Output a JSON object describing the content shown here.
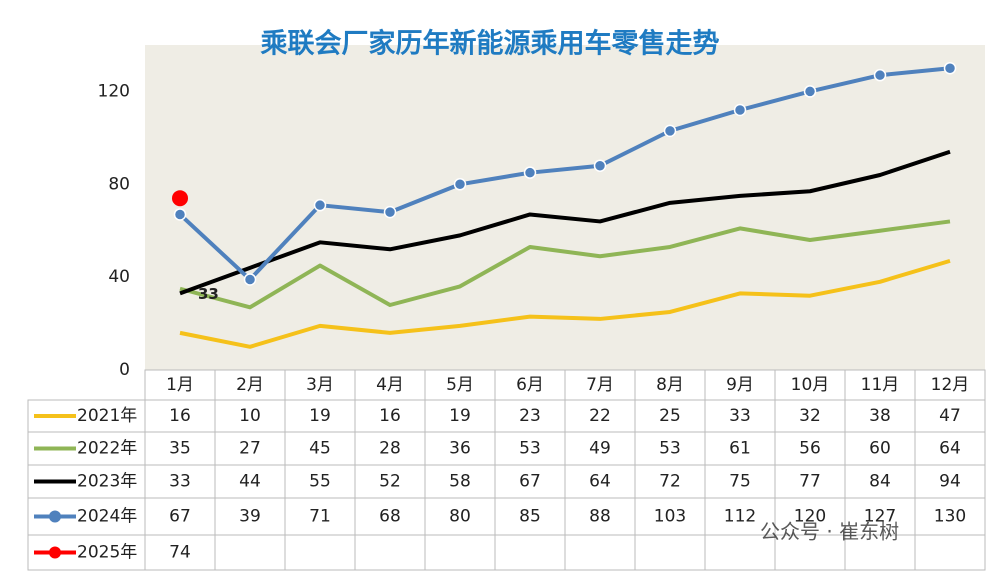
{
  "chart_data": {
    "type": "line",
    "title": "乘联会厂家历年新能源乘用车零售走势",
    "categories": [
      "1月",
      "2月",
      "3月",
      "4月",
      "5月",
      "6月",
      "7月",
      "8月",
      "9月",
      "10月",
      "11月",
      "12月"
    ],
    "series": [
      {
        "name": "2021年",
        "color": "#f5c11a",
        "marker": false,
        "values": [
          16,
          10,
          19,
          16,
          19,
          23,
          22,
          25,
          33,
          32,
          38,
          47
        ]
      },
      {
        "name": "2022年",
        "color": "#8fb556",
        "marker": false,
        "values": [
          35,
          27,
          45,
          28,
          36,
          53,
          49,
          53,
          61,
          56,
          60,
          64
        ]
      },
      {
        "name": "2023年",
        "color": "#000000",
        "marker": false,
        "values": [
          33,
          44,
          55,
          52,
          58,
          67,
          64,
          72,
          75,
          77,
          84,
          94
        ]
      },
      {
        "name": "2024年",
        "color": "#4f81bd",
        "marker": true,
        "values": [
          67,
          39,
          71,
          68,
          80,
          85,
          88,
          103,
          112,
          120,
          127,
          130
        ]
      },
      {
        "name": "2025年",
        "color": "#ff0000",
        "marker": true,
        "values": [
          74,
          null,
          null,
          null,
          null,
          null,
          null,
          null,
          null,
          null,
          null,
          null
        ]
      }
    ],
    "ylim": [
      0,
      140
    ],
    "yticks": [
      0,
      40,
      80,
      120
    ],
    "grid": false,
    "watermark": "公众号 · 崔东树"
  }
}
